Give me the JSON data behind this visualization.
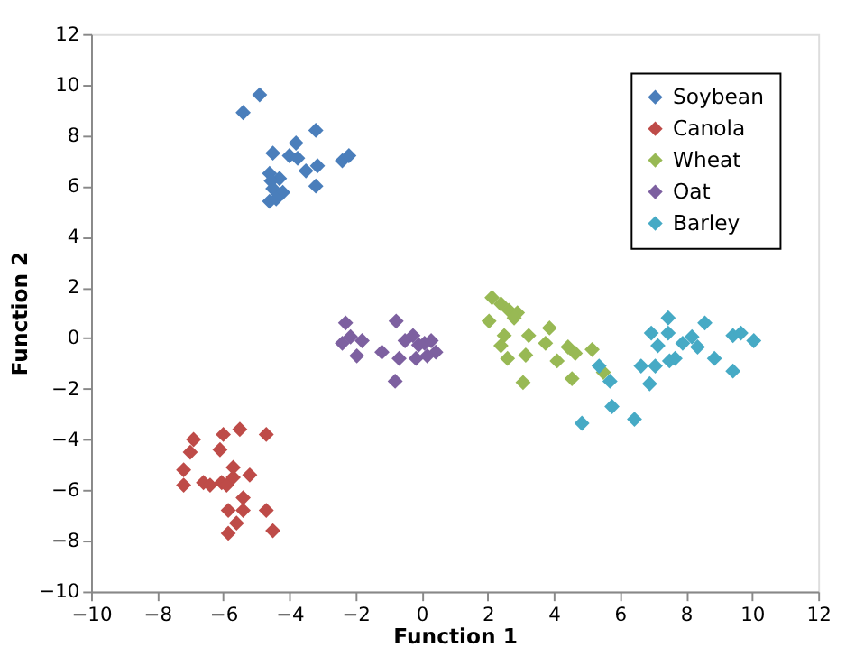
{
  "chart_data": {
    "type": "scatter",
    "xlabel": "Function 1",
    "ylabel": "Function 2",
    "xlim": [
      -10,
      12
    ],
    "ylim": [
      -10,
      12
    ],
    "xticks": [
      -10,
      -8,
      -6,
      -4,
      -2,
      0,
      2,
      4,
      6,
      8,
      10,
      12
    ],
    "yticks": [
      -10,
      -8,
      -6,
      -4,
      -2,
      0,
      2,
      4,
      6,
      8,
      10,
      12
    ],
    "grid": false,
    "legend": "top right",
    "marker": "diamond",
    "series": [
      {
        "name": "Soybean",
        "color": "#4a7ebb",
        "x": [
          -5.4,
          -4.9,
          -4.5,
          -3.8,
          -4.0,
          -3.75,
          -3.2,
          -3.5,
          -3.15,
          -3.2,
          -2.4,
          -2.2,
          -4.6,
          -4.3,
          -4.5,
          -4.2,
          -4.6,
          -4.4,
          -4.55
        ],
        "values": [
          8.9,
          9.6,
          7.3,
          7.7,
          7.2,
          7.1,
          8.2,
          6.6,
          6.8,
          6.0,
          7.0,
          7.2,
          6.5,
          6.3,
          5.9,
          5.75,
          5.4,
          5.5,
          6.2
        ]
      },
      {
        "name": "Canola",
        "color": "#be4b48",
        "x": [
          -6.9,
          -7.0,
          -7.2,
          -7.2,
          -6.6,
          -6.4,
          -6.05,
          -5.9,
          -5.7,
          -5.7,
          -6.0,
          -6.1,
          -5.5,
          -4.7,
          -5.2,
          -5.4,
          -5.85,
          -5.4,
          -4.7,
          -5.6,
          -5.85,
          -4.5
        ],
        "values": [
          -4.0,
          -4.5,
          -5.2,
          -5.8,
          -5.7,
          -5.8,
          -5.7,
          -5.8,
          -5.5,
          -5.1,
          -3.8,
          -4.4,
          -3.6,
          -3.8,
          -5.4,
          -6.3,
          -6.8,
          -6.8,
          -6.8,
          -7.3,
          -7.7,
          -7.6
        ]
      },
      {
        "name": "Wheat",
        "color": "#98b954",
        "x": [
          2.04,
          2.13,
          2.4,
          2.64,
          2.9,
          2.8,
          2.5,
          2.4,
          2.6,
          3.07,
          3.24,
          3.15,
          3.75,
          3.87,
          4.1,
          4.43,
          4.65,
          4.55,
          5.16,
          5.5
        ],
        "values": [
          0.67,
          1.6,
          1.35,
          1.1,
          1.0,
          0.8,
          0.1,
          -0.3,
          -0.8,
          -1.75,
          0.1,
          -0.67,
          -0.2,
          0.4,
          -0.9,
          -0.35,
          -0.6,
          -1.6,
          -0.45,
          -1.35
        ]
      },
      {
        "name": "Oat",
        "color": "#7d60a0",
        "x": [
          -2.3,
          -2.4,
          -2.15,
          -1.96,
          -1.8,
          -1.2,
          -0.77,
          -0.8,
          -0.68,
          -0.5,
          -0.26,
          -0.09,
          -0.17,
          0.09,
          0.29,
          0.43,
          0.17
        ],
        "values": [
          0.6,
          -0.2,
          0.05,
          -0.7,
          -0.1,
          -0.55,
          0.67,
          -1.7,
          -0.8,
          -0.1,
          0.1,
          -0.27,
          -0.8,
          -0.2,
          -0.1,
          -0.55,
          -0.7
        ]
      },
      {
        "name": "Barley",
        "color": "#46aac5",
        "x": [
          4.85,
          5.37,
          5.7,
          5.76,
          6.44,
          6.64,
          6.95,
          6.9,
          7.07,
          7.15,
          7.46,
          7.46,
          7.5,
          7.67,
          7.9,
          8.18,
          8.35,
          8.57,
          8.86,
          9.42,
          9.42,
          9.66,
          10.05
        ],
        "values": [
          -3.36,
          -1.1,
          -1.7,
          -2.7,
          -3.2,
          -1.1,
          0.2,
          -1.8,
          -1.1,
          -0.3,
          0.8,
          0.2,
          -0.9,
          -0.8,
          -0.2,
          0.05,
          -0.35,
          0.6,
          -0.8,
          -1.3,
          0.1,
          0.2,
          -0.1
        ]
      }
    ]
  }
}
